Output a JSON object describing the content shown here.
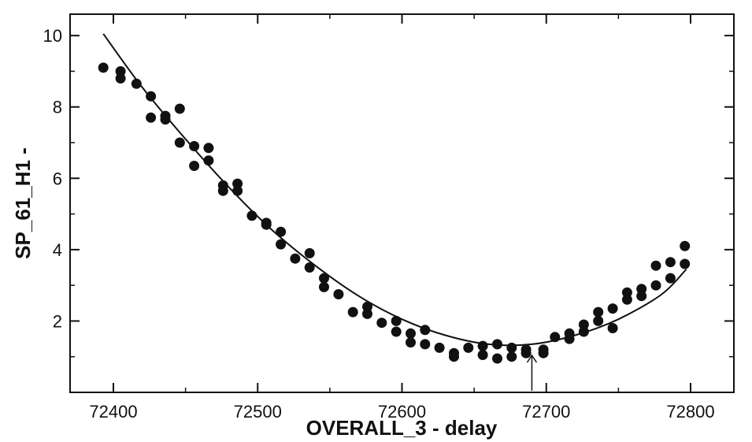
{
  "chart_data": {
    "type": "scatter",
    "xlabel": "OVERALL_3 - delay",
    "ylabel": "SP_61_H1 -",
    "xlim": [
      72370,
      72830
    ],
    "ylim": [
      0,
      10.6
    ],
    "xticks": [
      72400,
      72500,
      72600,
      72700,
      72800
    ],
    "xtick_labels": [
      "72400",
      "72500",
      "72600",
      "72700",
      "72800"
    ],
    "yticks": [
      2,
      4,
      6,
      8,
      10
    ],
    "ytick_labels": [
      "2",
      "4",
      "6",
      "8",
      "10"
    ],
    "grid": false,
    "legend": "none",
    "marker_color": "#111111",
    "series": [
      {
        "kind": "points",
        "x": [
          72393,
          72405,
          72405,
          72416,
          72426,
          72426,
          72436,
          72436,
          72446,
          72446,
          72456,
          72456,
          72466,
          72466,
          72476,
          72476,
          72486,
          72486,
          72496,
          72506,
          72506,
          72516,
          72516,
          72526,
          72536,
          72536,
          72546,
          72546,
          72556,
          72566,
          72576,
          72576,
          72586,
          72596,
          72596,
          72606,
          72606,
          72616,
          72616,
          72626,
          72636,
          72636,
          72646,
          72656,
          72656,
          72666,
          72666,
          72676,
          72676,
          72686,
          72686,
          72698,
          72698,
          72706,
          72716,
          72716,
          72726,
          72726,
          72736,
          72736,
          72746,
          72746,
          72756,
          72756,
          72766,
          72766,
          72776,
          72776,
          72786,
          72786,
          72796,
          72796
        ],
        "y": [
          9.1,
          9.0,
          8.8,
          8.65,
          8.3,
          7.7,
          7.75,
          7.65,
          7.95,
          7.0,
          6.9,
          6.35,
          6.85,
          6.5,
          5.8,
          5.65,
          5.85,
          5.65,
          4.95,
          4.75,
          4.7,
          4.5,
          4.15,
          3.75,
          3.9,
          3.5,
          3.2,
          2.95,
          2.75,
          2.25,
          2.4,
          2.2,
          1.95,
          2.0,
          1.7,
          1.65,
          1.4,
          1.75,
          1.35,
          1.25,
          1.1,
          1.0,
          1.25,
          1.3,
          1.05,
          1.35,
          0.95,
          1.25,
          1.0,
          1.2,
          1.1,
          1.2,
          1.1,
          1.55,
          1.65,
          1.5,
          1.9,
          1.7,
          2.25,
          2.0,
          2.35,
          1.8,
          2.8,
          2.6,
          2.9,
          2.7,
          3.55,
          3.0,
          3.65,
          3.2,
          4.1,
          3.6
        ]
      },
      {
        "kind": "fit-curve",
        "x": [
          72393,
          72420,
          72450,
          72480,
          72510,
          72540,
          72570,
          72600,
          72630,
          72660,
          72690,
          72720,
          72750,
          72780,
          72797
        ],
        "y": [
          10.05,
          8.55,
          7.1,
          5.75,
          4.55,
          3.55,
          2.7,
          2.05,
          1.6,
          1.35,
          1.35,
          1.6,
          2.05,
          2.75,
          3.45
        ]
      }
    ],
    "annotations": [
      {
        "type": "arrow",
        "direction": "up",
        "x": 72690
      }
    ]
  }
}
